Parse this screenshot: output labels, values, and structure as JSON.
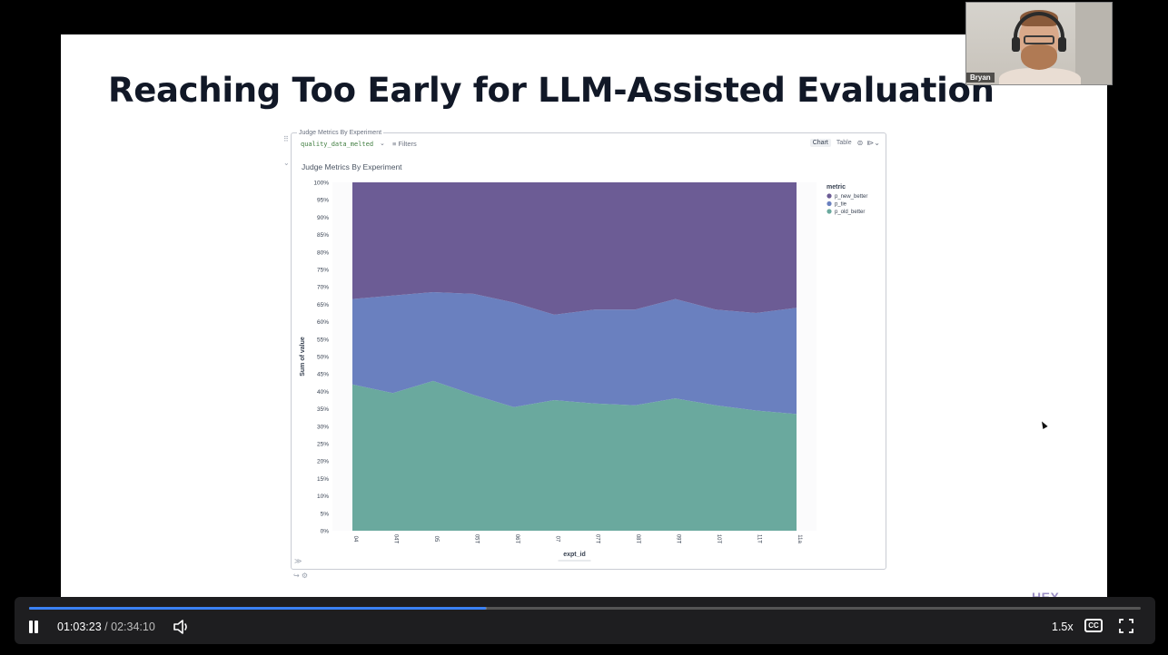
{
  "slide": {
    "title": "Reaching Too Early for LLM-Assisted Evaluation",
    "logo": "HEX"
  },
  "hex_cell": {
    "card_label": "Judge Metrics By Experiment",
    "dataframe": "quality_data_melted",
    "filters_label": "Filters",
    "view_chart": "Chart",
    "view_table": "Table",
    "chart_title": "Judge Metrics By Experiment"
  },
  "chart_data": {
    "type": "area",
    "stacked": "normalized",
    "title": "Judge Metrics By Experiment",
    "xlabel": "expt_id",
    "ylabel": "Sum of value",
    "x": [
      "04",
      "04T",
      "05",
      "05T",
      "06T",
      "07",
      "07T",
      "08T",
      "09T",
      "10T",
      "11T",
      "11a"
    ],
    "ylim": [
      0,
      100
    ],
    "yticks": [
      "0%",
      "5%",
      "10%",
      "15%",
      "20%",
      "25%",
      "30%",
      "35%",
      "40%",
      "45%",
      "50%",
      "55%",
      "60%",
      "65%",
      "70%",
      "75%",
      "80%",
      "85%",
      "90%",
      "95%",
      "100%"
    ],
    "legend_title": "metric",
    "legend_position": "top-right",
    "series": [
      {
        "name": "p_old_better",
        "color": "#6aa99e",
        "values": [
          42,
          39.5,
          43,
          39,
          35.5,
          37.5,
          36.5,
          36,
          38,
          36,
          34.5,
          33.5
        ]
      },
      {
        "name": "p_tie",
        "color": "#6a80bf",
        "values": [
          24.5,
          28,
          25.5,
          29,
          30,
          24.5,
          27,
          27.5,
          28.5,
          27.5,
          28,
          30.5
        ]
      },
      {
        "name": "p_new_better",
        "color": "#6c5c95",
        "values": [
          33.5,
          32.5,
          31.5,
          32,
          34.5,
          38,
          36.5,
          36.5,
          33.5,
          36.5,
          37.5,
          36
        ]
      }
    ]
  },
  "webcam": {
    "name": "Bryan"
  },
  "player": {
    "current_time": "01:03:23",
    "separator": "/",
    "duration": "02:34:10",
    "speed": "1.5x",
    "progress": 0.411,
    "buffered": 0.412,
    "cc_label": "CC",
    "colors": {
      "progress": "#3b82f6",
      "bar": "#1e1e20"
    }
  }
}
